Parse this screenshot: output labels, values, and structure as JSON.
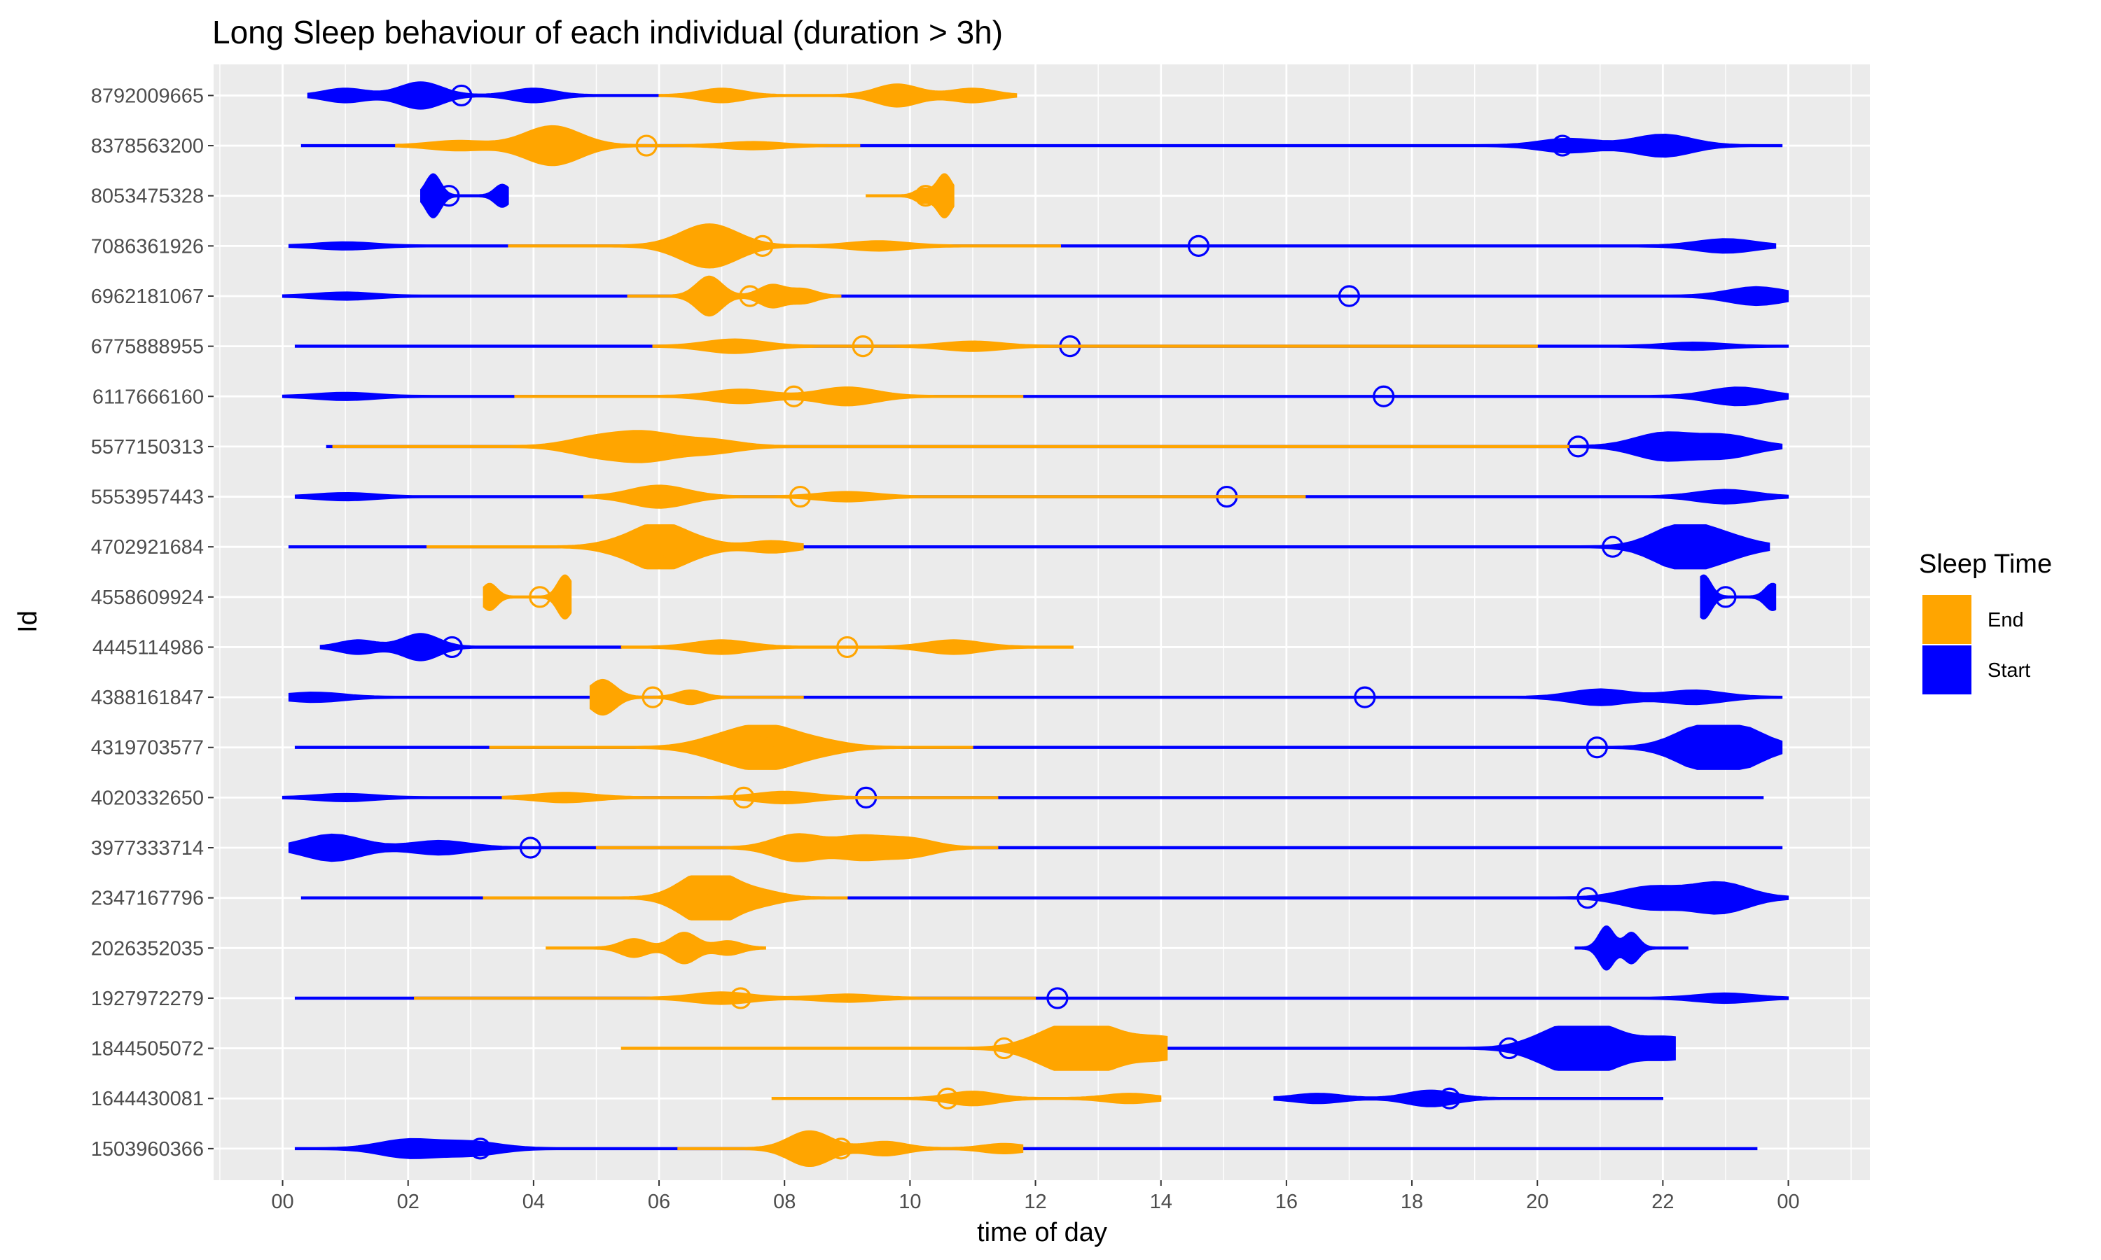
{
  "chart_data": {
    "type": "violin",
    "title": "Long Sleep behaviour of each individual (duration > 3h)",
    "xlabel": "time of day",
    "ylabel": "Id",
    "x_ticks": [
      "00",
      "02",
      "04",
      "06",
      "08",
      "10",
      "12",
      "14",
      "16",
      "18",
      "20",
      "22",
      "00"
    ],
    "xlim": [
      -1.1,
      25.3
    ],
    "grid": true,
    "legend": {
      "title": "Sleep Time",
      "placement": "right",
      "entries": [
        {
          "label": "End",
          "color": "#FFA500"
        },
        {
          "label": "Start",
          "color": "#0000FF"
        }
      ]
    },
    "ids": [
      "8792009665",
      "8378563200",
      "8053475328",
      "7086361926",
      "6962181067",
      "6775888955",
      "6117666160",
      "5577150313",
      "5553957443",
      "4702921684",
      "4558609924",
      "4445114986",
      "4388161847",
      "4319703577",
      "4020332650",
      "3977333714",
      "2347167796",
      "2026352035",
      "1927972279",
      "1844505072",
      "1644430081",
      "1503960366"
    ],
    "series": [
      {
        "name": "End",
        "color": "#FFA500",
        "data": [
          {
            "id": "8792009665",
            "range": [
              6.0,
              11.7
            ],
            "mean": 9.85,
            "peaks": [
              [
                7.0,
                0.3
              ],
              [
                9.8,
                0.5
              ],
              [
                11.0,
                0.3
              ]
            ]
          },
          {
            "id": "8378563200",
            "range": [
              1.8,
              9.2
            ],
            "mean": 5.8,
            "peaks": [
              [
                4.3,
                0.9
              ],
              [
                2.8,
                0.2
              ],
              [
                7.5,
                0.15
              ]
            ]
          },
          {
            "id": "8053475328",
            "range": [
              9.3,
              10.7
            ],
            "mean": 10.25,
            "peaks": [
              [
                10.55,
                1.0
              ],
              [
                10.2,
                0.3
              ]
            ]
          },
          {
            "id": "7086361926",
            "range": [
              3.6,
              12.4
            ],
            "mean": 7.65,
            "peaks": [
              [
                6.8,
                1.0
              ],
              [
                9.5,
                0.2
              ]
            ]
          },
          {
            "id": "6962181067",
            "range": [
              5.5,
              8.9
            ],
            "mean": 7.45,
            "peaks": [
              [
                6.8,
                0.9
              ],
              [
                7.8,
                0.5
              ],
              [
                8.3,
                0.3
              ]
            ]
          },
          {
            "id": "6775888955",
            "range": [
              5.9,
              20.0
            ],
            "mean": 9.25,
            "peaks": [
              [
                7.2,
                0.3
              ],
              [
                11.0,
                0.2
              ]
            ]
          },
          {
            "id": "6117666160",
            "range": [
              3.7,
              11.8
            ],
            "mean": 8.15,
            "peaks": [
              [
                7.3,
                0.3
              ],
              [
                9.0,
                0.4
              ]
            ]
          },
          {
            "id": "5577150313",
            "range": [
              0.8,
              20.5
            ],
            "mean": 6.4,
            "peaks": [
              [
                5.8,
                0.6
              ],
              [
                5.0,
                0.4
              ],
              [
                6.8,
                0.3
              ]
            ]
          },
          {
            "id": "5553957443",
            "range": [
              4.8,
              16.3
            ],
            "mean": 8.25,
            "peaks": [
              [
                6.0,
                0.5
              ],
              [
                9.0,
                0.2
              ]
            ]
          },
          {
            "id": "4702921684",
            "range": [
              2.3,
              8.3
            ],
            "mean": 6.1,
            "peaks": [
              [
                6.0,
                1.0
              ],
              [
                6.6,
                0.3
              ],
              [
                5.4,
                0.25
              ],
              [
                7.8,
                0.25
              ]
            ]
          },
          {
            "id": "4558609924",
            "range": [
              3.2,
              4.6
            ],
            "mean": 4.1,
            "peaks": [
              [
                4.5,
                1.0
              ],
              [
                3.3,
                0.6
              ]
            ]
          },
          {
            "id": "4445114986",
            "range": [
              5.4,
              12.6
            ],
            "mean": 9.0,
            "peaks": [
              [
                7.0,
                0.3
              ],
              [
                10.7,
                0.3
              ]
            ]
          },
          {
            "id": "4388161847",
            "range": [
              4.9,
              8.3
            ],
            "mean": 5.9,
            "peaks": [
              [
                5.1,
                0.8
              ],
              [
                6.5,
                0.3
              ]
            ]
          },
          {
            "id": "4319703577",
            "range": [
              3.3,
              11.0
            ],
            "mean": 7.65,
            "peaks": [
              [
                7.7,
                0.9
              ],
              [
                7.0,
                0.4
              ],
              [
                8.5,
                0.3
              ]
            ]
          },
          {
            "id": "4020332650",
            "range": [
              3.5,
              11.4
            ],
            "mean": 7.35,
            "peaks": [
              [
                4.5,
                0.2
              ],
              [
                8.0,
                0.25
              ]
            ]
          },
          {
            "id": "3977333714",
            "range": [
              5.0,
              11.4
            ],
            "mean": 8.55,
            "peaks": [
              [
                8.2,
                0.6
              ],
              [
                9.2,
                0.5
              ],
              [
                10.0,
                0.4
              ]
            ]
          },
          {
            "id": "2347167796",
            "range": [
              3.2,
              9.0
            ],
            "mean": 6.9,
            "peaks": [
              [
                6.9,
                1.0
              ],
              [
                6.5,
                0.5
              ],
              [
                7.6,
                0.3
              ]
            ]
          },
          {
            "id": "2026352035",
            "range": [
              4.2,
              7.7
            ],
            "mean": 6.4,
            "peaks": [
              [
                6.4,
                0.7
              ],
              [
                5.6,
                0.4
              ],
              [
                7.1,
                0.3
              ]
            ]
          },
          {
            "id": "1927972279",
            "range": [
              2.1,
              12.0
            ],
            "mean": 7.3,
            "peaks": [
              [
                7.0,
                0.25
              ],
              [
                9.0,
                0.15
              ]
            ]
          },
          {
            "id": "1844505072",
            "range": [
              5.4,
              14.1
            ],
            "mean": 11.5,
            "peaks": [
              [
                12.9,
                1.0
              ],
              [
                12.3,
                0.6
              ],
              [
                14.0,
                0.5
              ]
            ]
          },
          {
            "id": "1644430081",
            "range": [
              7.8,
              14.0
            ],
            "mean": 10.6,
            "peaks": [
              [
                11.0,
                0.3
              ],
              [
                13.5,
                0.2
              ]
            ]
          },
          {
            "id": "1503960366",
            "range": [
              6.3,
              11.8
            ],
            "mean": 8.9,
            "peaks": [
              [
                8.4,
                0.8
              ],
              [
                9.6,
                0.3
              ],
              [
                11.5,
                0.2
              ]
            ]
          }
        ]
      },
      {
        "name": "Start",
        "color": "#0000FF",
        "data": [
          {
            "id": "8792009665",
            "range": [
              0.4,
              6.0
            ],
            "mean": 2.85,
            "peaks": [
              [
                2.2,
                0.6
              ],
              [
                1.0,
                0.3
              ],
              [
                4.0,
                0.3
              ]
            ]
          },
          {
            "id": "8378563200",
            "range": [
              0.3,
              23.9
            ],
            "mean": 20.4,
            "peaks": [
              [
                22.0,
                0.5
              ],
              [
                20.5,
                0.3
              ]
            ]
          },
          {
            "id": "8053475328",
            "range": [
              2.2,
              3.6
            ],
            "mean": 2.65,
            "peaks": [
              [
                2.4,
                1.0
              ],
              [
                3.5,
                0.5
              ]
            ]
          },
          {
            "id": "7086361926",
            "range": [
              0.1,
              23.8
            ],
            "mean": 14.6,
            "peaks": [
              [
                23.0,
                0.3
              ],
              [
                1.0,
                0.15
              ]
            ]
          },
          {
            "id": "6962181067",
            "range": [
              0.0,
              24.0
            ],
            "mean": 17.0,
            "peaks": [
              [
                23.5,
                0.4
              ],
              [
                1.0,
                0.15
              ]
            ]
          },
          {
            "id": "6775888955",
            "range": [
              0.2,
              24.0
            ],
            "mean": 12.55,
            "peaks": [
              [
                22.5,
                0.15
              ]
            ]
          },
          {
            "id": "6117666160",
            "range": [
              0.0,
              24.0
            ],
            "mean": 17.55,
            "peaks": [
              [
                23.2,
                0.4
              ],
              [
                1.0,
                0.15
              ]
            ]
          },
          {
            "id": "5577150313",
            "range": [
              0.7,
              23.9
            ],
            "mean": 20.65,
            "peaks": [
              [
                22.0,
                0.6
              ],
              [
                23.0,
                0.5
              ]
            ]
          },
          {
            "id": "5553957443",
            "range": [
              0.2,
              24.0
            ],
            "mean": 15.05,
            "peaks": [
              [
                23.0,
                0.3
              ],
              [
                1.0,
                0.15
              ]
            ]
          },
          {
            "id": "4702921684",
            "range": [
              0.1,
              23.7
            ],
            "mean": 21.2,
            "peaks": [
              [
                22.3,
                1.0
              ],
              [
                23.0,
                0.4
              ]
            ]
          },
          {
            "id": "4558609924",
            "range": [
              22.6,
              23.8
            ],
            "mean": 23.0,
            "peaks": [
              [
                22.65,
                1.0
              ],
              [
                23.75,
                0.6
              ]
            ]
          },
          {
            "id": "4445114986",
            "range": [
              0.6,
              5.4
            ],
            "mean": 2.7,
            "peaks": [
              [
                2.2,
                0.6
              ],
              [
                1.2,
                0.3
              ]
            ]
          },
          {
            "id": "4388161847",
            "range": [
              0.1,
              23.9
            ],
            "mean": 17.25,
            "peaks": [
              [
                21.0,
                0.35
              ],
              [
                22.5,
                0.3
              ],
              [
                0.5,
                0.2
              ]
            ]
          },
          {
            "id": "4319703577",
            "range": [
              0.2,
              23.9
            ],
            "mean": 20.95,
            "peaks": [
              [
                22.6,
                0.8
              ],
              [
                23.2,
                0.8
              ]
            ]
          },
          {
            "id": "4020332650",
            "range": [
              0.0,
              23.6
            ],
            "mean": 9.3,
            "peaks": [
              [
                1.0,
                0.15
              ]
            ]
          },
          {
            "id": "3977333714",
            "range": [
              0.1,
              23.9
            ],
            "mean": 3.95,
            "peaks": [
              [
                0.8,
                0.6
              ],
              [
                2.5,
                0.3
              ]
            ]
          },
          {
            "id": "2347167796",
            "range": [
              0.3,
              24.0
            ],
            "mean": 20.8,
            "peaks": [
              [
                22.9,
                0.7
              ],
              [
                21.8,
                0.5
              ]
            ]
          },
          {
            "id": "2026352035",
            "range": [
              20.6,
              22.4
            ],
            "mean": 21.1,
            "peaks": [
              [
                21.1,
                1.0
              ],
              [
                21.5,
                0.7
              ]
            ]
          },
          {
            "id": "1927972279",
            "range": [
              0.2,
              24.0
            ],
            "mean": 12.35,
            "peaks": [
              [
                23.0,
                0.2
              ]
            ]
          },
          {
            "id": "1844505072",
            "range": [
              13.5,
              22.2
            ],
            "mean": 19.55,
            "peaks": [
              [
                20.9,
                1.0
              ],
              [
                20.3,
                0.6
              ],
              [
                22.1,
                0.5
              ]
            ]
          },
          {
            "id": "1644430081",
            "range": [
              15.8,
              22.0
            ],
            "mean": 18.6,
            "peaks": [
              [
                18.3,
                0.35
              ],
              [
                16.5,
                0.2
              ]
            ]
          },
          {
            "id": "1503960366",
            "range": [
              0.2,
              23.5
            ],
            "mean": 3.15,
            "peaks": [
              [
                2.0,
                0.4
              ],
              [
                3.0,
                0.3
              ]
            ]
          }
        ]
      }
    ]
  }
}
